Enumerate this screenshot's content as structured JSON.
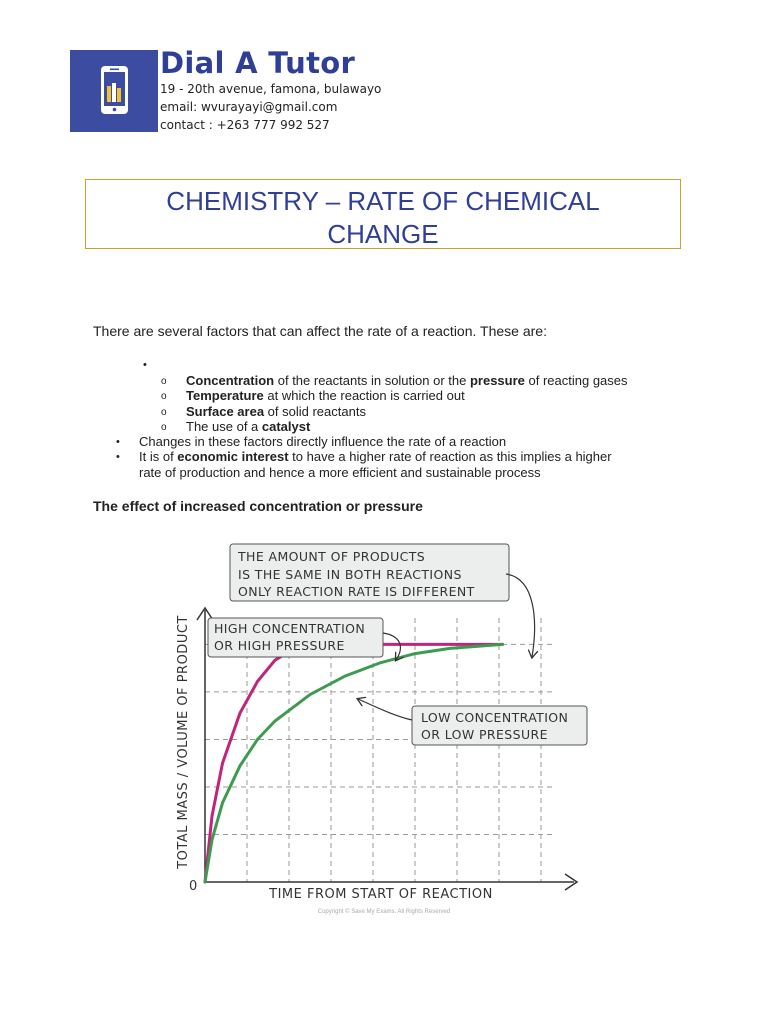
{
  "header": {
    "brand": "Dial A Tutor",
    "address": "19 - 20th avenue, famona, bulawayo",
    "email": "email: wvurayayi@gmail.com",
    "contact": "contact : +263 777 992 527",
    "brand_color": "#2f3e96",
    "logo_icon": "phone-with-books-icon"
  },
  "title": {
    "line1": "CHEMISTRY – RATE OF CHEMICAL",
    "line2": "CHANGE"
  },
  "intro": "There are several factors that can affect the rate of a reaction. These are:",
  "factors": {
    "item1_bold": "Concentration",
    "item1_mid": " of the reactants in solution or the ",
    "item1_bold2": "pressure",
    "item1_end": " of reacting gases",
    "item2_bold": "Temperature",
    "item2_end": " at which the reaction is carried out",
    "item3_bold": "Surface area",
    "item3_end": " of solid reactants",
    "item4_start": "The use of a ",
    "item4_bold": "catalyst"
  },
  "points": {
    "p1": "Changes in these factors directly influence the rate of a reaction",
    "p2_start": "It is of ",
    "p2_bold": "economic interest",
    "p2_end": " to have a higher rate of reaction as this implies a higher",
    "p2_line2": "rate of production and hence a more efficient and sustainable process"
  },
  "subheading": "The effect of increased concentration or pressure",
  "chart_data": {
    "type": "line",
    "xlabel": "TIME FROM START OF REACTION",
    "ylabel": "TOTAL MASS / VOLUME OF PRODUCT",
    "origin_label": "0",
    "xlim": [
      0,
      10
    ],
    "ylim": [
      0,
      10
    ],
    "grid": true,
    "series": [
      {
        "name": "HIGH CONCENTRATION OR HIGH PRESSURE",
        "color": "#c0257a",
        "x": [
          0,
          0.2,
          0.5,
          1,
          1.5,
          2,
          2.5,
          3,
          4,
          5,
          6,
          7,
          8.5
        ],
        "y": [
          0,
          2.5,
          4.5,
          6.4,
          7.6,
          8.4,
          8.8,
          8.95,
          9.0,
          9.0,
          9.0,
          9.0,
          9.0
        ]
      },
      {
        "name": "LOW CONCENTRATION OR LOW PRESSURE",
        "color": "#3e9a4f",
        "x": [
          0,
          0.2,
          0.5,
          1,
          1.5,
          2,
          3,
          4,
          5,
          6,
          7,
          8.5
        ],
        "y": [
          0,
          1.6,
          3.0,
          4.4,
          5.4,
          6.1,
          7.1,
          7.8,
          8.3,
          8.65,
          8.85,
          9.0
        ]
      }
    ],
    "annotations": [
      {
        "line1": "THE AMOUNT OF PRODUCTS",
        "line2": "IS THE SAME IN BOTH REACTIONS",
        "line3": "ONLY REACTION RATE IS DIFFERENT"
      },
      {
        "line1": "HIGH CONCENTRATION",
        "line2": "OR HIGH PRESSURE"
      },
      {
        "line1": "LOW CONCENTRATION",
        "line2": "OR LOW PRESSURE"
      }
    ],
    "copyright": "Copyright © Save My Exams. All Rights Reserved"
  }
}
